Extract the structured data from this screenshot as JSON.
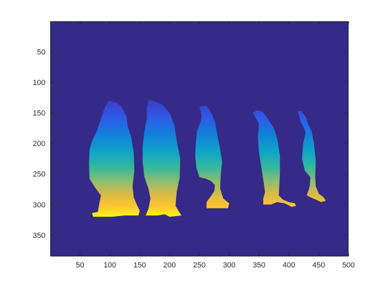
{
  "chart_data": {
    "type": "heatmap",
    "title": "",
    "xlabel": "",
    "ylabel": "",
    "xlim": [
      0,
      500
    ],
    "ylim": [
      0,
      385
    ],
    "y_reversed": true,
    "x_ticks": [
      50,
      100,
      150,
      200,
      250,
      300,
      350,
      400,
      450,
      500
    ],
    "x_tick_labels": [
      "50",
      "100",
      "150",
      "200",
      "250",
      "300",
      "350",
      "400",
      "450",
      "500"
    ],
    "y_ticks": [
      50,
      100,
      150,
      200,
      250,
      300,
      350
    ],
    "y_tick_labels": [
      "50",
      "100",
      "150",
      "200",
      "250",
      "300",
      "350"
    ],
    "grid": false,
    "colormap": "parula",
    "background_color": "#352A87",
    "value_range_rows": [
      130,
      320
    ],
    "objects": [
      {
        "name": "penguin-1",
        "outline": [
          [
            98,
            130
          ],
          [
            113,
            134
          ],
          [
            120,
            140
          ],
          [
            128,
            156
          ],
          [
            130,
            172
          ],
          [
            136,
            190
          ],
          [
            140,
            215
          ],
          [
            141,
            245
          ],
          [
            138,
            270
          ],
          [
            140,
            288
          ],
          [
            145,
            300
          ],
          [
            150,
            310
          ],
          [
            148,
            318
          ],
          [
            125,
            318
          ],
          [
            103,
            320
          ],
          [
            72,
            320
          ],
          [
            70,
            314
          ],
          [
            80,
            312
          ],
          [
            82,
            300
          ],
          [
            85,
            285
          ],
          [
            75,
            272
          ],
          [
            66,
            258
          ],
          [
            65,
            232
          ],
          [
            66,
            210
          ],
          [
            70,
            196
          ],
          [
            78,
            180
          ],
          [
            85,
            160
          ],
          [
            92,
            140
          ]
        ]
      },
      {
        "name": "penguin-2",
        "outline": [
          [
            165,
            128
          ],
          [
            188,
            136
          ],
          [
            200,
            150
          ],
          [
            208,
            170
          ],
          [
            212,
            195
          ],
          [
            218,
            225
          ],
          [
            217,
            255
          ],
          [
            212,
            280
          ],
          [
            210,
            302
          ],
          [
            216,
            312
          ],
          [
            220,
            318
          ],
          [
            200,
            320
          ],
          [
            192,
            316
          ],
          [
            180,
            318
          ],
          [
            160,
            318
          ],
          [
            165,
            306
          ],
          [
            168,
            290
          ],
          [
            165,
            275
          ],
          [
            158,
            255
          ],
          [
            155,
            230
          ],
          [
            155,
            205
          ],
          [
            158,
            180
          ],
          [
            162,
            160
          ],
          [
            162,
            142
          ]
        ]
      },
      {
        "name": "penguin-3",
        "outline": [
          [
            250,
            140
          ],
          [
            262,
            138
          ],
          [
            270,
            150
          ],
          [
            276,
            165
          ],
          [
            280,
            185
          ],
          [
            284,
            205
          ],
          [
            288,
            230
          ],
          [
            286,
            250
          ],
          [
            285,
            265
          ],
          [
            285,
            275
          ],
          [
            290,
            290
          ],
          [
            300,
            298
          ],
          [
            298,
            306
          ],
          [
            275,
            306
          ],
          [
            262,
            306
          ],
          [
            262,
            296
          ],
          [
            268,
            288
          ],
          [
            275,
            278
          ],
          [
            276,
            268
          ],
          [
            270,
            262
          ],
          [
            262,
            258
          ],
          [
            250,
            255
          ],
          [
            245,
            240
          ],
          [
            243,
            220
          ],
          [
            244,
            200
          ],
          [
            246,
            180
          ],
          [
            252,
            165
          ],
          [
            254,
            155
          ]
        ]
      },
      {
        "name": "penguin-4",
        "outline": [
          [
            340,
            150
          ],
          [
            346,
            146
          ],
          [
            356,
            148
          ],
          [
            365,
            160
          ],
          [
            375,
            175
          ],
          [
            381,
            195
          ],
          [
            385,
            220
          ],
          [
            385,
            248
          ],
          [
            384,
            268
          ],
          [
            383,
            285
          ],
          [
            390,
            292
          ],
          [
            400,
            296
          ],
          [
            410,
            298
          ],
          [
            412,
            302
          ],
          [
            405,
            304
          ],
          [
            393,
            298
          ],
          [
            380,
            296
          ],
          [
            370,
            300
          ],
          [
            357,
            300
          ],
          [
            357,
            290
          ],
          [
            360,
            280
          ],
          [
            358,
            265
          ],
          [
            354,
            240
          ],
          [
            350,
            215
          ],
          [
            348,
            190
          ],
          [
            350,
            168
          ]
        ]
      },
      {
        "name": "penguin-5",
        "outline": [
          [
            415,
            148
          ],
          [
            420,
            146
          ],
          [
            428,
            156
          ],
          [
            432,
            168
          ],
          [
            438,
            180
          ],
          [
            442,
            200
          ],
          [
            445,
            230
          ],
          [
            444,
            255
          ],
          [
            445,
            270
          ],
          [
            450,
            282
          ],
          [
            458,
            288
          ],
          [
            462,
            294
          ],
          [
            454,
            296
          ],
          [
            445,
            292
          ],
          [
            436,
            288
          ],
          [
            430,
            285
          ],
          [
            435,
            270
          ],
          [
            436,
            255
          ],
          [
            427,
            245
          ],
          [
            422,
            225
          ],
          [
            424,
            200
          ],
          [
            428,
            182
          ],
          [
            424,
            172
          ],
          [
            420,
            165
          ]
        ]
      }
    ]
  }
}
